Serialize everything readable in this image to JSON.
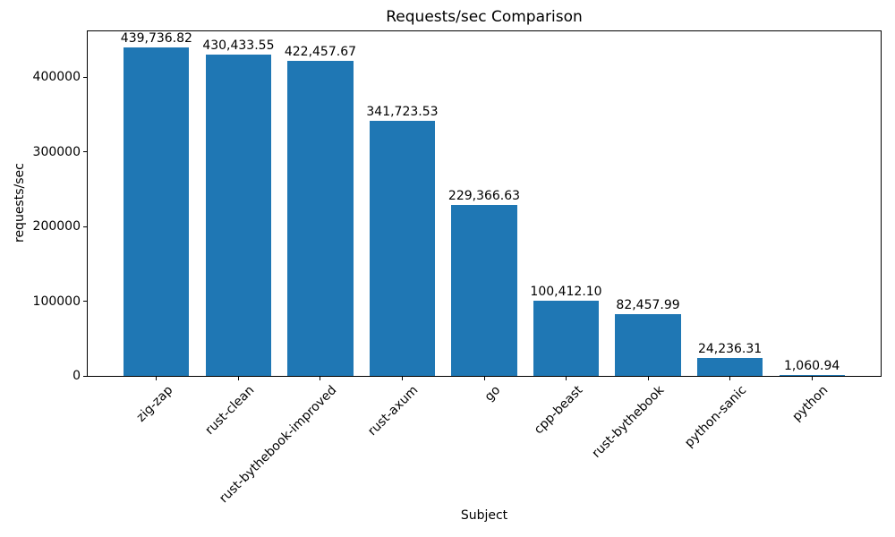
{
  "chart_data": {
    "type": "bar",
    "title": "Requests/sec Comparison",
    "xlabel": "Subject",
    "ylabel": "requests/sec",
    "categories": [
      "zig-zap",
      "rust-clean",
      "rust-bythebook-improved",
      "rust-axum",
      "go",
      "cpp-beast",
      "rust-bythebook",
      "python-sanic",
      "python"
    ],
    "values": [
      439736.82,
      430433.55,
      422457.67,
      341723.53,
      229366.63,
      100412.1,
      82457.99,
      24236.31,
      1060.94
    ],
    "bar_labels": [
      "439,736.82",
      "430,433.55",
      "422,457.67",
      "341,723.53",
      "229,366.63",
      "100,412.10",
      "82,457.99",
      "24,236.31",
      "1,060.94"
    ],
    "y_tick_values": [
      0,
      100000,
      200000,
      300000,
      400000
    ],
    "y_tick_labels": [
      "0",
      "100000",
      "200000",
      "300000",
      "400000"
    ],
    "ylim": [
      0,
      461724
    ],
    "bar_color": "#1f77b4",
    "grid": false,
    "legend_position": "none"
  }
}
